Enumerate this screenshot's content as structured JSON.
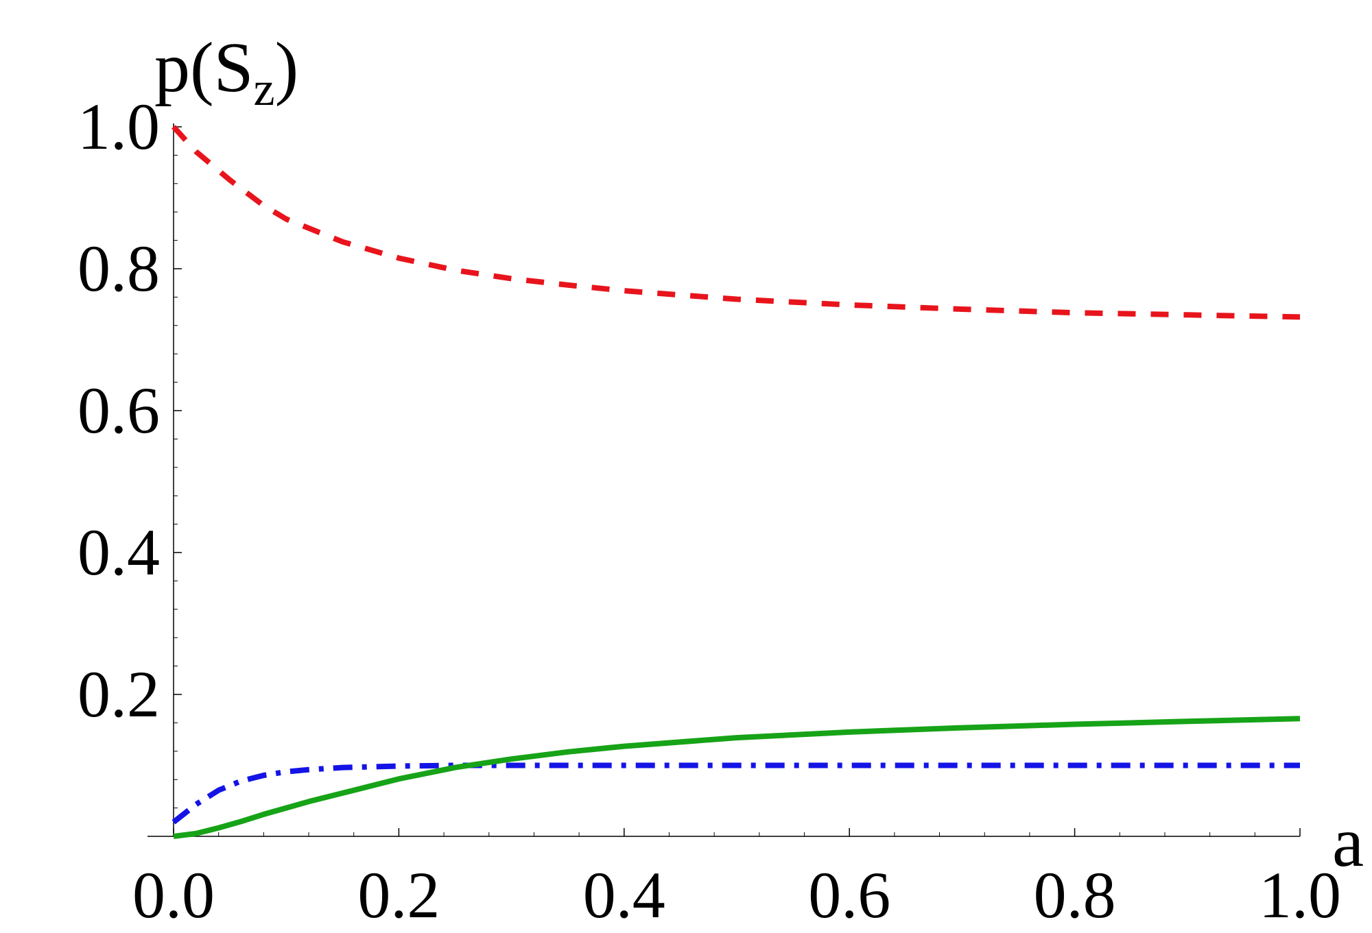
{
  "chart_data": {
    "type": "line",
    "title": "",
    "xlabel": "a",
    "ylabel": "p(S",
    "ylabel_subscript": "z",
    "ylabel_suffix": ")",
    "xlim": [
      0.0,
      1.0
    ],
    "ylim": [
      0.0,
      1.0
    ],
    "xticks": [
      "0.0",
      "0.2",
      "0.4",
      "0.6",
      "0.8",
      "1.0"
    ],
    "yticks": [
      "0.2",
      "0.4",
      "0.6",
      "0.8",
      "1.0"
    ],
    "grid": false,
    "legend": "none",
    "series": [
      {
        "style": "dashed",
        "color": "#e8141c",
        "x": [
          0.0,
          0.02,
          0.05,
          0.08,
          0.1,
          0.15,
          0.2,
          0.25,
          0.3,
          0.35,
          0.4,
          0.5,
          0.6,
          0.7,
          0.8,
          0.9,
          1.0
        ],
        "y": [
          1.0,
          0.965,
          0.925,
          0.889,
          0.87,
          0.838,
          0.815,
          0.798,
          0.786,
          0.777,
          0.769,
          0.757,
          0.749,
          0.743,
          0.738,
          0.735,
          0.732
        ]
      },
      {
        "style": "dashdot",
        "color": "#1414e6",
        "x": [
          0.0,
          0.02,
          0.04,
          0.06,
          0.08,
          0.1,
          0.12,
          0.15,
          0.2,
          0.25,
          0.3,
          0.4,
          0.5,
          0.6,
          0.7,
          0.8,
          0.9,
          1.0
        ],
        "y": [
          0.02,
          0.045,
          0.065,
          0.078,
          0.086,
          0.091,
          0.094,
          0.097,
          0.099,
          0.1,
          0.1,
          0.1,
          0.1,
          0.1,
          0.1,
          0.1,
          0.1,
          0.1
        ]
      },
      {
        "style": "solid",
        "color": "#17a317",
        "x": [
          0.0,
          0.02,
          0.04,
          0.06,
          0.08,
          0.1,
          0.12,
          0.15,
          0.2,
          0.25,
          0.3,
          0.35,
          0.4,
          0.5,
          0.6,
          0.7,
          0.8,
          0.9,
          1.0
        ],
        "y": [
          0.0,
          0.004,
          0.012,
          0.021,
          0.031,
          0.04,
          0.049,
          0.061,
          0.081,
          0.097,
          0.109,
          0.119,
          0.127,
          0.139,
          0.147,
          0.153,
          0.158,
          0.162,
          0.166
        ]
      }
    ]
  }
}
